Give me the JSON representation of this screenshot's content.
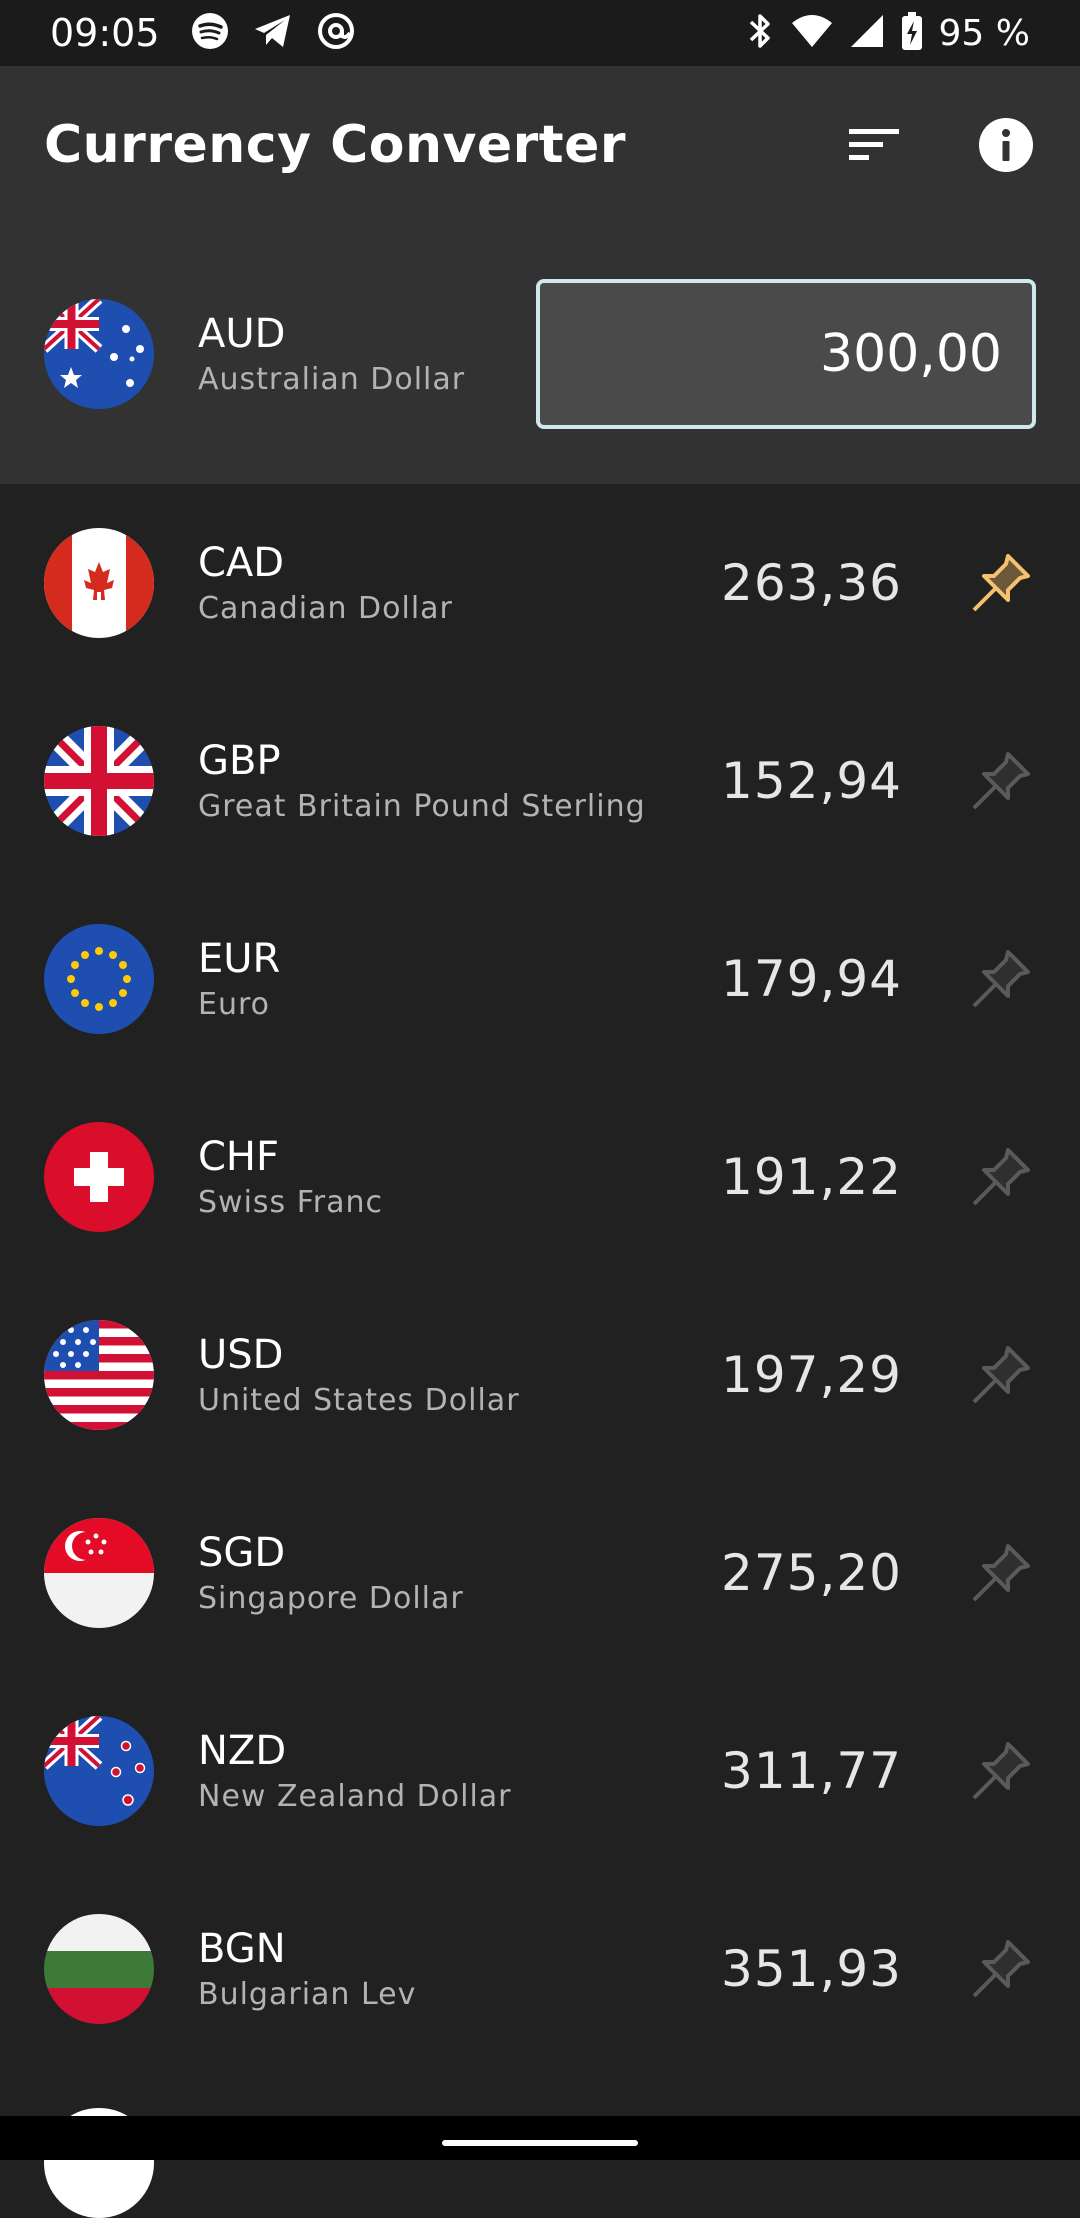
{
  "status_bar": {
    "time": "09:05",
    "left_icons": [
      "spotify-icon",
      "telegram-icon",
      "at-sign-icon"
    ],
    "right_icons": [
      "bluetooth-icon",
      "wifi-icon",
      "signal-icon",
      "battery-charging-icon"
    ],
    "battery": "95 %"
  },
  "app_bar": {
    "title": "Currency Converter",
    "actions": [
      "sort-icon",
      "info-icon"
    ]
  },
  "base": {
    "code": "AUD",
    "name": "Australian Dollar",
    "amount": "300,00"
  },
  "currencies": [
    {
      "code": "CAD",
      "name": "Canadian Dollar",
      "value": "263,36",
      "pinned": true
    },
    {
      "code": "GBP",
      "name": "Great Britain Pound Sterling",
      "value": "152,94",
      "pinned": false
    },
    {
      "code": "EUR",
      "name": "Euro",
      "value": "179,94",
      "pinned": false
    },
    {
      "code": "CHF",
      "name": "Swiss Franc",
      "value": "191,22",
      "pinned": false
    },
    {
      "code": "USD",
      "name": "United States Dollar",
      "value": "197,29",
      "pinned": false
    },
    {
      "code": "SGD",
      "name": "Singapore Dollar",
      "value": "275,20",
      "pinned": false
    },
    {
      "code": "NZD",
      "name": "New Zealand Dollar",
      "value": "311,77",
      "pinned": false
    },
    {
      "code": "BGN",
      "name": "Bulgarian Lev",
      "value": "351,93",
      "pinned": false
    }
  ],
  "colors": {
    "background": "#212121",
    "app_bar": "#323232",
    "pin_active": "#f5c16c",
    "pin_inactive": "#5a5a5a",
    "input_border": "#cfe8ec"
  }
}
